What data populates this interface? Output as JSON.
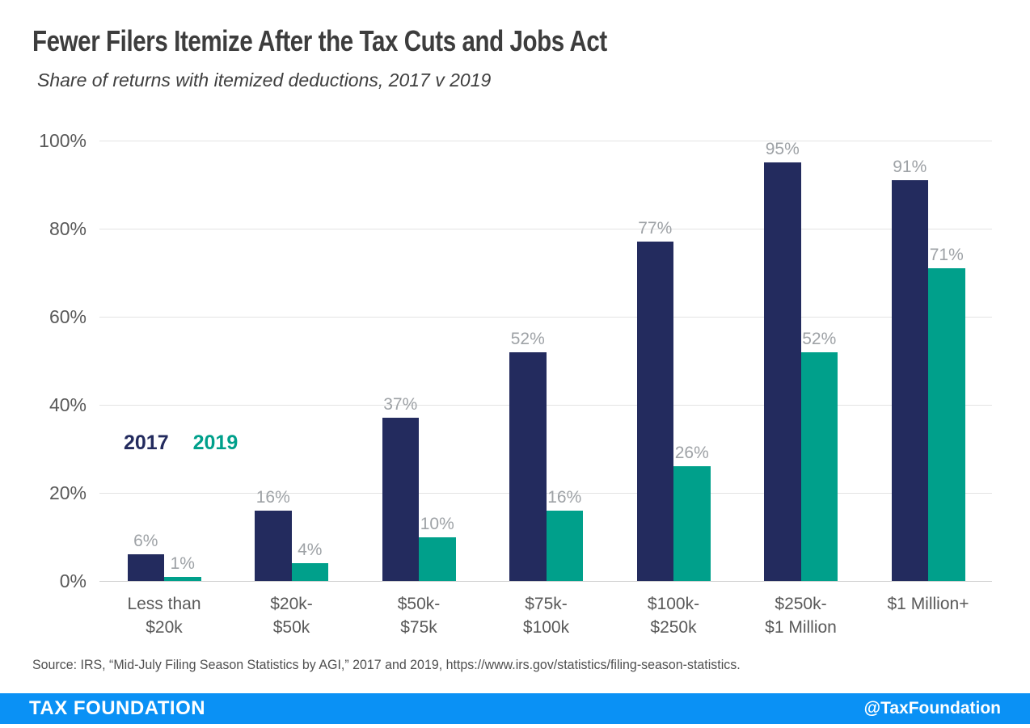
{
  "header": {
    "title": "Fewer Filers Itemize After the Tax Cuts and Jobs Act",
    "subtitle": "Share of returns with itemized deductions, 2017 v 2019"
  },
  "chart_data": {
    "type": "bar",
    "title": "Fewer Filers Itemize After the Tax Cuts and Jobs Act",
    "subtitle": "Share of returns with itemized deductions, 2017 v 2019",
    "categories": [
      "Less than $20k",
      "$20k-$50k",
      "$50k-$75k",
      "$75k-$100k",
      "$100k-$250k",
      "$250k-$1 Million",
      "$1 Million+"
    ],
    "category_lines": [
      [
        "Less than",
        "$20k"
      ],
      [
        "$20k-",
        "$50k"
      ],
      [
        "$50k-",
        "$75k"
      ],
      [
        "$75k-",
        "$100k"
      ],
      [
        "$100k-",
        "$250k"
      ],
      [
        "$250k-",
        "$1 Million"
      ],
      [
        "$1 Million+"
      ]
    ],
    "series": [
      {
        "name": "2017",
        "color": "#232b5e",
        "values": [
          6,
          16,
          37,
          52,
          77,
          95,
          91
        ]
      },
      {
        "name": "2019",
        "color": "#00a08b",
        "values": [
          1,
          4,
          10,
          16,
          26,
          52,
          71
        ]
      }
    ],
    "value_label_suffix": "%",
    "y_ticks": [
      "100%",
      "80%",
      "60%",
      "40%",
      "20%",
      "0%"
    ],
    "ylim": [
      0,
      100
    ],
    "grid": true,
    "legend_position": "inside-left",
    "xlabel": "",
    "ylabel": ""
  },
  "source": {
    "text": "Source: IRS, “Mid-July Filing Season Statistics by AGI,” 2017 and 2019, https://www.irs.gov/statistics/filing-season-statistics."
  },
  "footer": {
    "brand": "TAX FOUNDATION",
    "handle": "@TaxFoundation"
  },
  "colors": {
    "bar_2017": "#232b5e",
    "bar_2019": "#00a08b",
    "footer_bg": "#0a91f5",
    "gridline": "#e3e3e3",
    "data_label": "#9ea2a6",
    "axis_label": "#595959",
    "title_text": "#3d3d3d"
  }
}
